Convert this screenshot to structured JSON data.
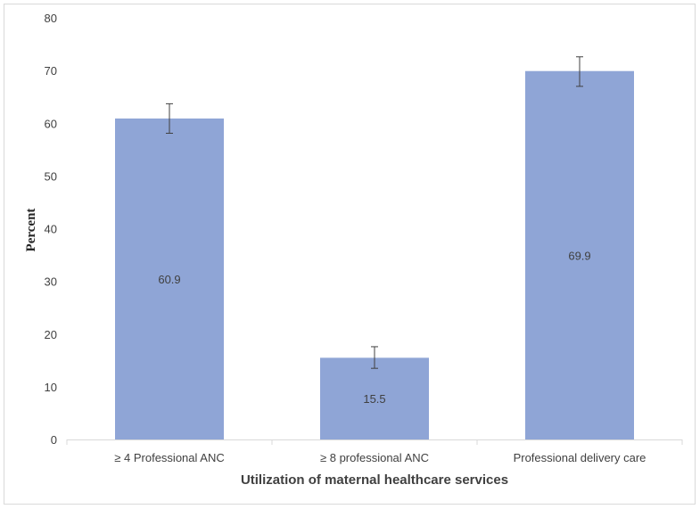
{
  "chart_data": {
    "type": "bar",
    "categories": [
      "≥ 4 Professional ANC",
      "≥ 8 professional ANC",
      "Professional delivery care"
    ],
    "values": [
      60.9,
      15.5,
      69.9
    ],
    "data_labels": [
      "60.9",
      "15.5",
      "69.9"
    ],
    "error_low": [
      58.1,
      13.5,
      67.0
    ],
    "error_high": [
      63.7,
      17.6,
      72.6
    ],
    "xlabel": "Utilization of maternal healthcare services",
    "ylabel": "Percent",
    "ylim": [
      0,
      80
    ],
    "yticks": [
      "0",
      "10",
      "20",
      "30",
      "40",
      "50",
      "60",
      "70",
      "80"
    ],
    "bar_color": "#8fa5d6",
    "grid": false,
    "legend": "none"
  }
}
